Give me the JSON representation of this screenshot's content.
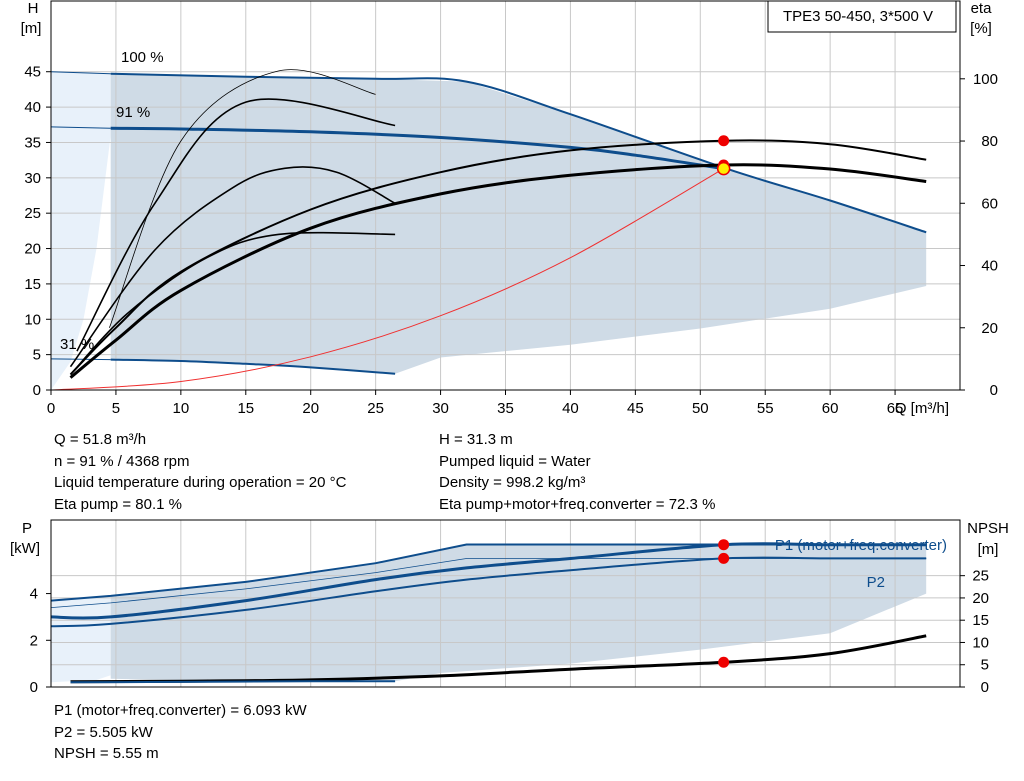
{
  "chart_data": [
    {
      "type": "line",
      "title": "TPE3 50-450, 3*500 V",
      "x_axis": {
        "label": "Q [m³/h]",
        "range": [
          0,
          70
        ],
        "ticks": [
          0,
          5,
          10,
          15,
          20,
          25,
          30,
          35,
          40,
          45,
          50,
          55,
          60,
          65
        ]
      },
      "y_left": {
        "label_line1": "H",
        "label_line2": "[m]",
        "range": [
          0,
          55
        ],
        "ticks": [
          0,
          5,
          10,
          15,
          20,
          25,
          30,
          35,
          40,
          45
        ]
      },
      "y_right": {
        "label_line1": "eta",
        "label_line2": "[%]",
        "range": [
          0,
          125
        ],
        "ticks": [
          0,
          20,
          40,
          60,
          80,
          100
        ]
      },
      "grid": true,
      "curve_labels": [
        "100 %",
        "91 %",
        "31 %"
      ],
      "series": [
        {
          "role": "head",
          "speed": "100 %",
          "x": [
            0,
            4.6,
            15,
            25,
            32,
            40,
            52,
            60,
            67.4
          ],
          "y": [
            45.0,
            44.7,
            44.3,
            44.0,
            43.6,
            39.0,
            31.3,
            26.8,
            22.3
          ]
        },
        {
          "role": "head",
          "speed": "91 %",
          "x": [
            0,
            4.6,
            10,
            20,
            30,
            40,
            45,
            51.8
          ],
          "y": [
            37.2,
            37.0,
            36.9,
            36.5,
            35.7,
            34.3,
            33.2,
            31.3
          ]
        },
        {
          "role": "head",
          "speed": "31 %",
          "x": [
            0,
            4.6,
            10,
            15,
            20,
            26.5
          ],
          "y": [
            4.4,
            4.3,
            4.1,
            3.7,
            3.2,
            2.3
          ]
        },
        {
          "role": "system-curve",
          "x": [
            0,
            10,
            20,
            30,
            40,
            51.8
          ],
          "y": [
            0,
            1.2,
            4.7,
            10.5,
            18.7,
            31.3
          ]
        },
        {
          "role": "eta-pump",
          "x": [
            1.5,
            5,
            10,
            20,
            30,
            40,
            51.8,
            60,
            67.4
          ],
          "y": [
            5,
            20,
            38,
            58,
            70,
            77,
            80.1,
            79,
            74
          ]
        },
        {
          "role": "eta-total",
          "x": [
            1.5,
            5,
            10,
            20,
            30,
            40,
            51.8,
            60,
            67.4
          ],
          "y": [
            4,
            16,
            32,
            52,
            63,
            69,
            72.3,
            71,
            67
          ]
        }
      ],
      "duty_point": {
        "x": 51.8,
        "y": 31.3,
        "eta_pump": 80.1,
        "eta_total": 72.3
      }
    },
    {
      "type": "line",
      "x_axis": {
        "range": [
          0,
          70
        ]
      },
      "y_left": {
        "label_line1": "P",
        "label_line2": "[kW]",
        "range": [
          0,
          7.15
        ],
        "ticks": [
          0,
          2,
          4
        ]
      },
      "y_right": {
        "label_line1": "NPSH",
        "label_line2": "[m]",
        "range": [
          0,
          37.5
        ],
        "ticks": [
          0,
          5,
          10,
          15,
          20,
          25
        ]
      },
      "grid": true,
      "series": [
        {
          "name": "P1 (motor+freq.converter)",
          "role": "p1",
          "x": [
            0,
            4.6,
            15,
            25,
            32,
            40,
            51.8,
            60,
            67.4
          ],
          "y": [
            3.0,
            3.0,
            3.7,
            4.6,
            5.1,
            5.5,
            6.093,
            6.093,
            6.093
          ]
        },
        {
          "name": "P2",
          "role": "p2",
          "x": [
            0,
            4.6,
            15,
            25,
            32,
            40,
            51.8,
            60,
            67.4
          ],
          "y": [
            2.6,
            2.7,
            3.3,
            4.1,
            4.6,
            5.0,
            5.505,
            5.505,
            5.505
          ]
        },
        {
          "role": "npsh",
          "x": [
            1.5,
            10,
            20,
            30,
            40,
            51.8,
            60,
            67.4
          ],
          "y": [
            1.2,
            1.3,
            1.6,
            2.5,
            4.0,
            5.55,
            7.5,
            11.5
          ]
        }
      ],
      "duty_point": {
        "x": 51.8,
        "p1": 6.093,
        "p2": 5.505,
        "npsh": 5.55
      }
    }
  ],
  "results_top": {
    "left": [
      "Q = 51.8 m³/h",
      "n = 91 % / 4368 rpm",
      "Liquid temperature during operation = 20 °C",
      "Eta pump = 80.1 %"
    ],
    "right": [
      "H = 31.3 m",
      "Pumped liquid = Water",
      "Density = 998.2 kg/m³",
      "Eta pump+motor+freq.converter = 72.3 %"
    ]
  },
  "results_bottom": [
    "P1 (motor+freq.converter) = 6.093 kW",
    "P2 = 5.505 kW",
    "NPSH = 5.55 m"
  ],
  "colors": {
    "area": "#cfdbe6",
    "area_light": "#e8f1fa",
    "pump_curve": "#0e4d8c",
    "efficiency": "#000000",
    "system_curve": "#f03030",
    "duty_marker": "#ee0000",
    "duty_marker_fill": "#ffee00",
    "grid": "#c8c8c8"
  }
}
